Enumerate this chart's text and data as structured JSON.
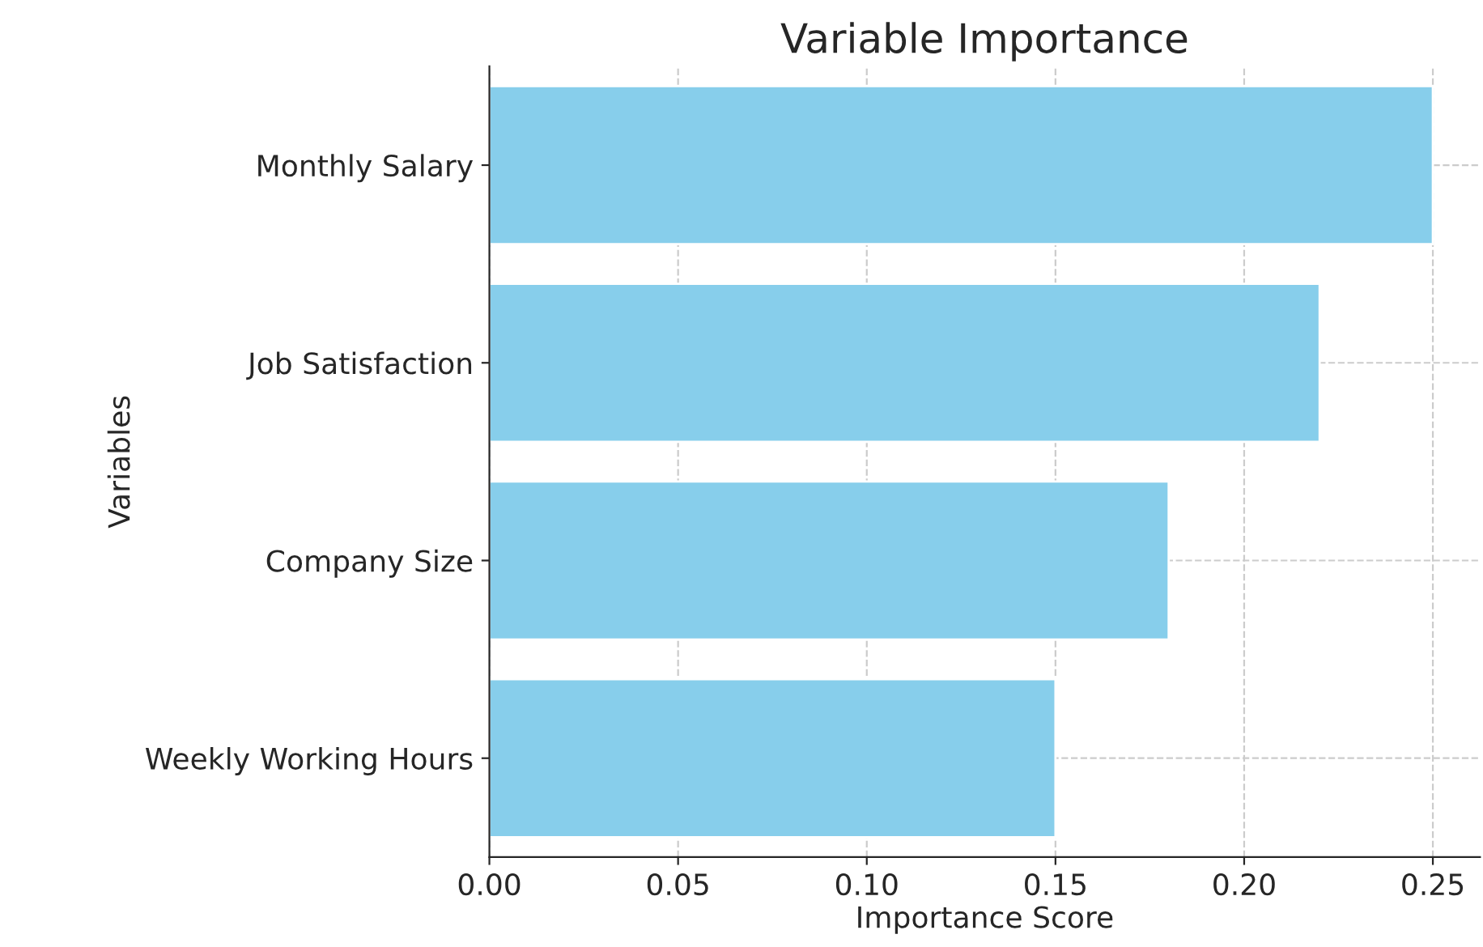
{
  "chart_data": {
    "type": "bar",
    "orientation": "horizontal",
    "title": "Variable Importance",
    "xlabel": "Importance Score",
    "ylabel": "Variables",
    "categories": [
      "Monthly Salary",
      "Job Satisfaction",
      "Company Size",
      "Weekly Working Hours"
    ],
    "values": [
      0.25,
      0.22,
      0.18,
      0.15
    ],
    "color": "#87ceeb",
    "xlim": [
      0,
      0.2625
    ],
    "xticks": [
      {
        "value": 0,
        "label": "0.00"
      },
      {
        "value": 0.05,
        "label": "0.05"
      },
      {
        "value": 0.1,
        "label": "0.10"
      },
      {
        "value": 0.15,
        "label": "0.15"
      },
      {
        "value": 0.2,
        "label": "0.20"
      },
      {
        "value": 0.25,
        "label": "0.25"
      }
    ],
    "grid": true
  }
}
